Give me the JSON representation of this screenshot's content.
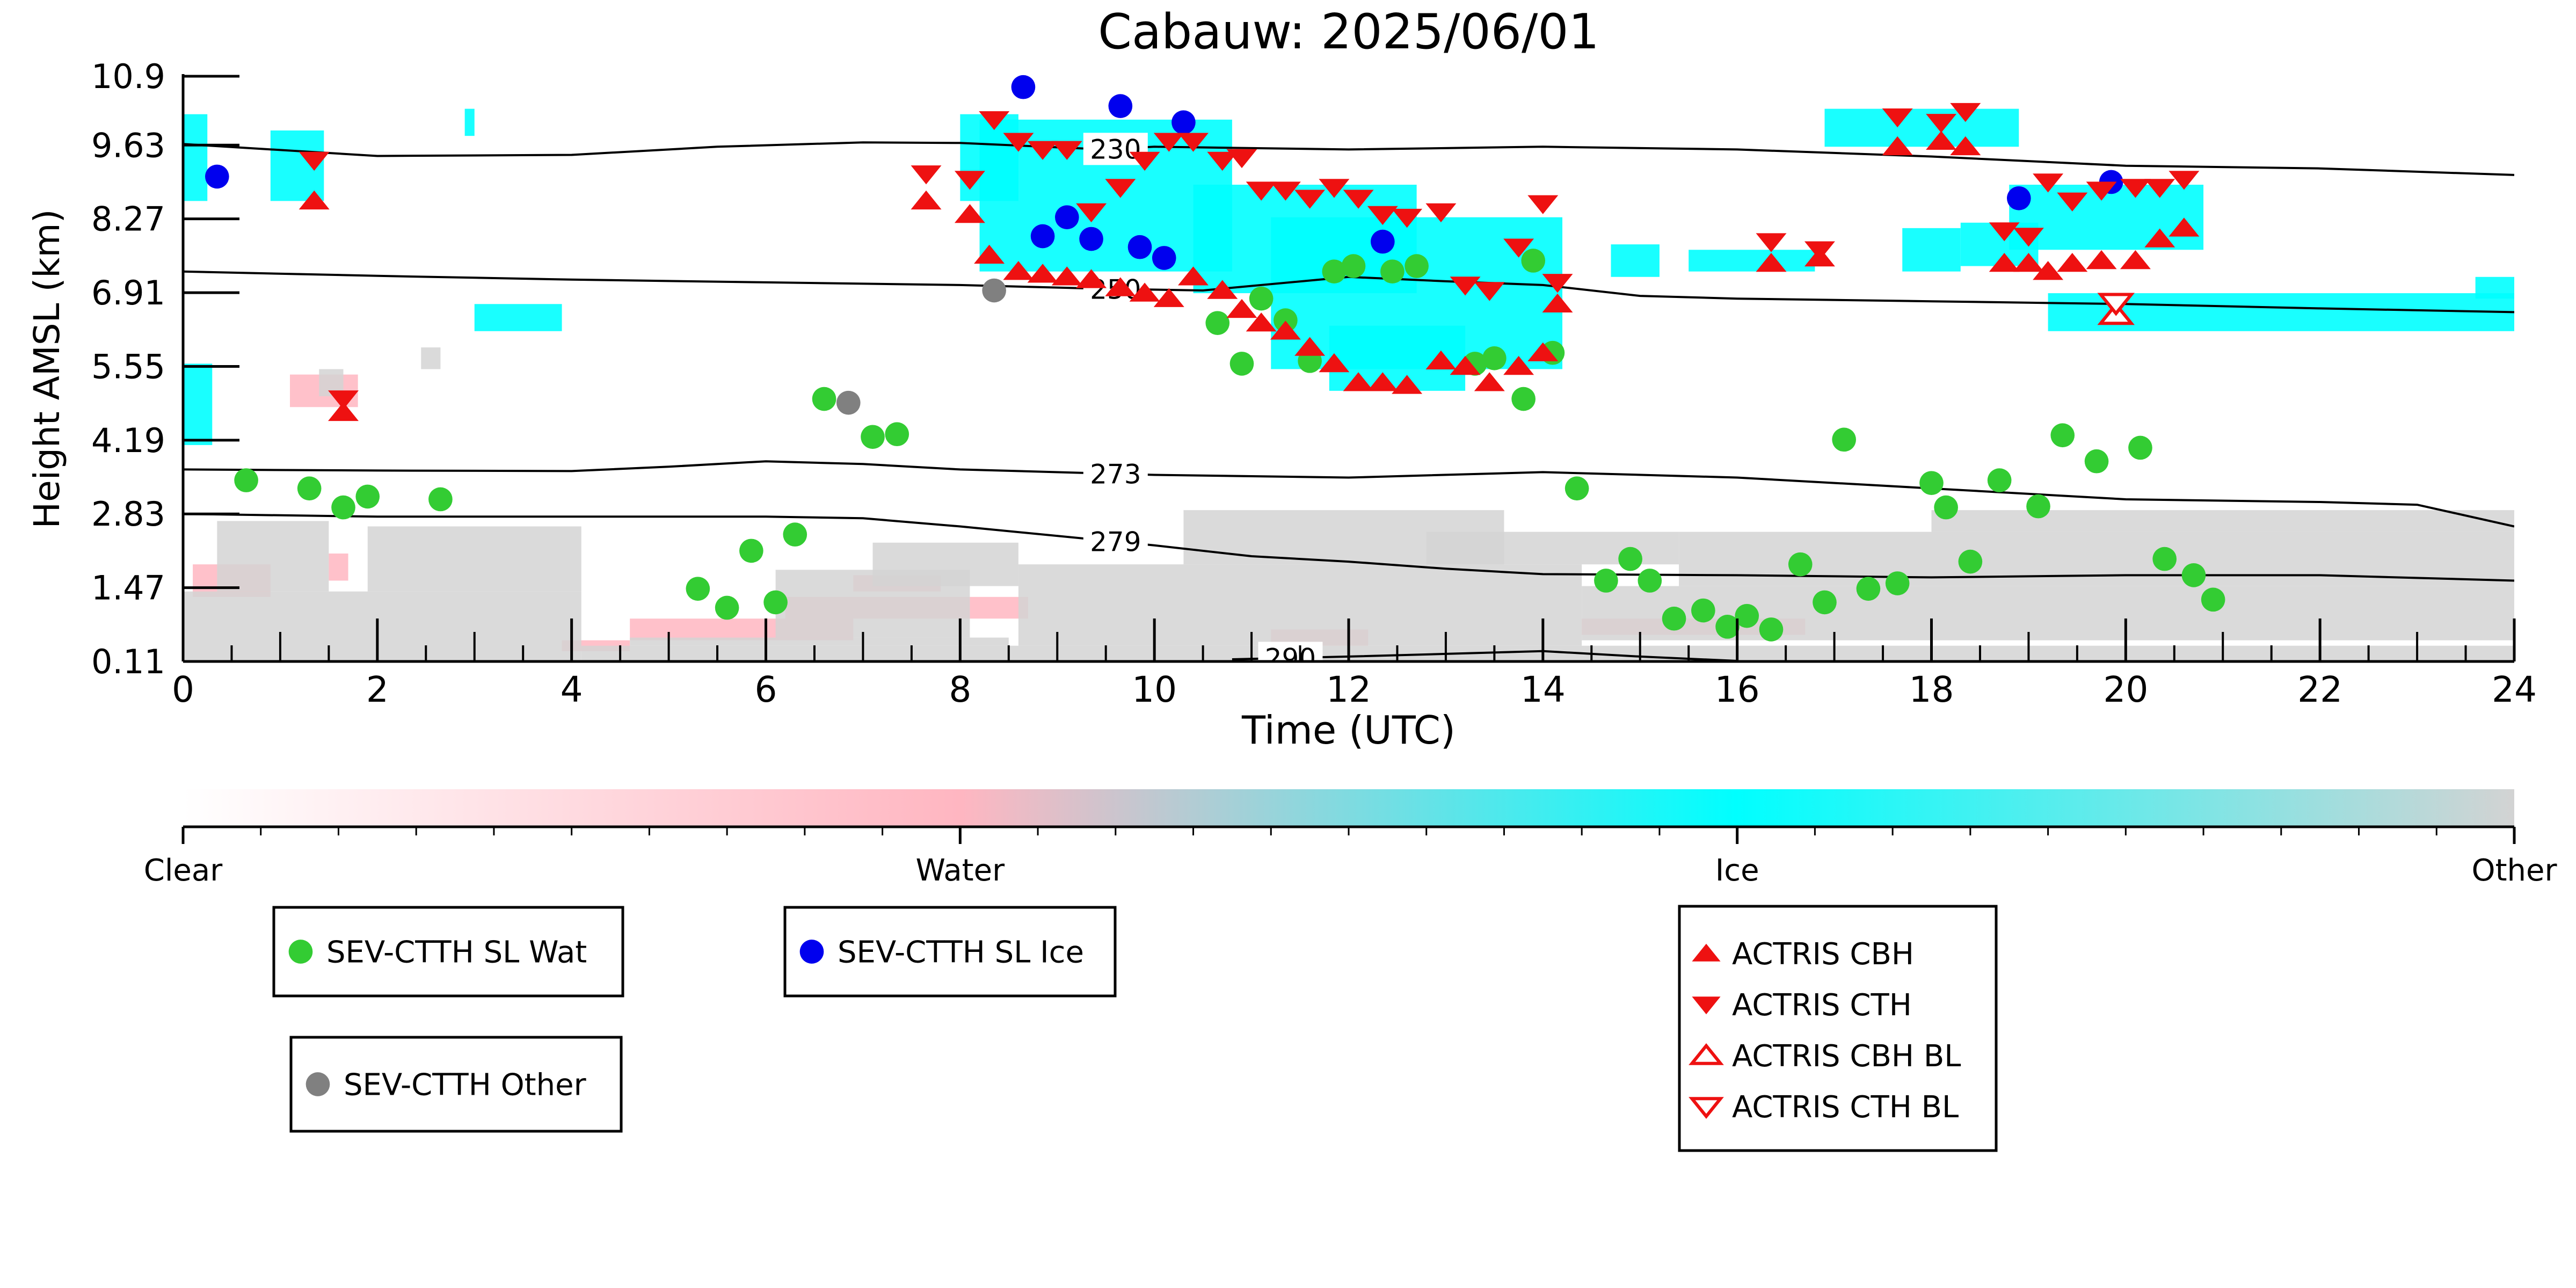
{
  "chart_data": {
    "type": "scatter",
    "title": "Cabauw: 2025/06/01",
    "xlabel": "Time (UTC)",
    "ylabel": "Height AMSL (km)",
    "xlim": [
      0,
      24
    ],
    "ylim": [
      0.11,
      10.9
    ],
    "x_ticks": [
      0,
      2,
      4,
      6,
      8,
      10,
      12,
      14,
      16,
      18,
      20,
      22,
      24
    ],
    "y_ticks": [
      0.11,
      1.47,
      2.83,
      4.19,
      5.55,
      6.91,
      8.27,
      9.63,
      10.9
    ],
    "y_tick_labels": [
      "0.11",
      "1.47",
      "2.83",
      "4.19",
      "5.55",
      "6.91",
      "8.27",
      "9.63",
      "10.9"
    ],
    "colorbar": {
      "labels": [
        "Clear",
        "Water",
        "Ice",
        "Other"
      ],
      "colors": [
        "#ffffff",
        "#ffb6c1",
        "#00ffff",
        "#d3d3d3"
      ]
    },
    "contours": [
      {
        "label": "230",
        "label_x": 9.6,
        "points": [
          [
            0,
            9.65
          ],
          [
            2,
            9.43
          ],
          [
            4,
            9.45
          ],
          [
            5.5,
            9.6
          ],
          [
            7,
            9.68
          ],
          [
            8,
            9.67
          ],
          [
            9.5,
            9.55
          ],
          [
            10,
            9.6
          ],
          [
            12,
            9.55
          ],
          [
            14,
            9.6
          ],
          [
            16,
            9.55
          ],
          [
            18,
            9.42
          ],
          [
            20,
            9.25
          ],
          [
            22,
            9.2
          ],
          [
            24,
            9.08
          ]
        ]
      },
      {
        "label": "250",
        "label_x": 9.6,
        "points": [
          [
            0,
            7.3
          ],
          [
            2,
            7.22
          ],
          [
            4,
            7.15
          ],
          [
            6,
            7.1
          ],
          [
            8,
            7.05
          ],
          [
            9.5,
            6.98
          ],
          [
            10.5,
            6.95
          ],
          [
            12,
            7.2
          ],
          [
            13,
            7.12
          ],
          [
            14,
            7.05
          ],
          [
            15,
            6.85
          ],
          [
            16,
            6.8
          ],
          [
            18,
            6.75
          ],
          [
            20,
            6.7
          ],
          [
            22,
            6.62
          ],
          [
            24,
            6.55
          ]
        ]
      },
      {
        "label": "273",
        "label_x": 9.6,
        "points": [
          [
            0,
            3.65
          ],
          [
            2,
            3.63
          ],
          [
            4,
            3.62
          ],
          [
            5,
            3.7
          ],
          [
            6,
            3.8
          ],
          [
            7,
            3.75
          ],
          [
            8,
            3.65
          ],
          [
            10,
            3.55
          ],
          [
            12,
            3.5
          ],
          [
            14,
            3.6
          ],
          [
            16,
            3.5
          ],
          [
            18,
            3.3
          ],
          [
            20,
            3.1
          ],
          [
            22,
            3.05
          ],
          [
            23,
            3.0
          ],
          [
            24,
            2.6
          ]
        ]
      },
      {
        "label": "279",
        "label_x": 9.6,
        "points": [
          [
            0,
            2.83
          ],
          [
            2,
            2.78
          ],
          [
            4,
            2.78
          ],
          [
            6,
            2.78
          ],
          [
            7,
            2.75
          ],
          [
            8,
            2.6
          ],
          [
            10,
            2.25
          ],
          [
            11,
            2.05
          ],
          [
            12,
            1.95
          ],
          [
            13,
            1.82
          ],
          [
            14,
            1.72
          ],
          [
            16,
            1.7
          ],
          [
            18,
            1.66
          ],
          [
            20,
            1.7
          ],
          [
            22,
            1.7
          ],
          [
            24,
            1.6
          ]
        ]
      },
      {
        "label": "290",
        "label_x": 11.4,
        "points": [
          [
            10.8,
            0.15
          ],
          [
            12,
            0.2
          ],
          [
            13,
            0.25
          ],
          [
            14,
            0.3
          ],
          [
            15,
            0.2
          ],
          [
            16,
            0.12
          ]
        ]
      }
    ],
    "series": [
      {
        "name": "SEV-CTTH SL Wat",
        "marker": "circle",
        "color": "#33cc33",
        "x": [
          0.65,
          1.3,
          1.65,
          1.9,
          2.65,
          5.3,
          5.6,
          5.85,
          6.1,
          6.3,
          6.6,
          7.1,
          7.35,
          10.65,
          10.9,
          11.1,
          11.35,
          11.6,
          11.85,
          12.05,
          12.45,
          12.7,
          13.3,
          13.5,
          13.8,
          13.9,
          14.1,
          14.35,
          14.65,
          14.9,
          15.1,
          15.35,
          15.65,
          15.9,
          16.1,
          16.35,
          16.65,
          16.9,
          17.1,
          17.35,
          17.65,
          18,
          18.15,
          18.4,
          18.7,
          19.1,
          19.35,
          19.7,
          20.15,
          20.4,
          20.7,
          20.9
        ],
        "y": [
          3.45,
          3.3,
          2.95,
          3.15,
          3.1,
          1.45,
          1.1,
          2.15,
          1.2,
          2.45,
          4.95,
          4.25,
          4.3,
          6.35,
          5.6,
          6.8,
          6.4,
          5.65,
          7.3,
          7.4,
          7.3,
          7.4,
          5.6,
          5.7,
          4.95,
          7.5,
          5.8,
          3.3,
          1.6,
          2.0,
          1.6,
          0.9,
          1.05,
          0.75,
          0.95,
          0.7,
          1.9,
          1.2,
          4.2,
          1.45,
          1.55,
          3.4,
          2.95,
          1.95,
          3.45,
          2.97,
          4.28,
          3.8,
          4.05,
          2.0,
          1.7,
          1.25
        ]
      },
      {
        "name": "SEV-CTTH SL Ice",
        "marker": "circle",
        "color": "#0000ee",
        "x": [
          0.35,
          8.65,
          8.85,
          9.1,
          9.35,
          9.65,
          9.85,
          10.1,
          10.3,
          12.35,
          18.9,
          19.85
        ],
        "y": [
          9.05,
          10.7,
          7.95,
          8.3,
          7.9,
          10.35,
          7.75,
          7.55,
          10.05,
          7.85,
          8.65,
          8.95
        ]
      },
      {
        "name": "SEV-CTTH Other",
        "marker": "circle",
        "color": "#808080",
        "x": [
          8.35,
          6.85
        ],
        "y": [
          6.95,
          4.88
        ]
      },
      {
        "name": "ACTRIS CBH",
        "marker": "triangle-up",
        "color": "#ee1111",
        "filled": true,
        "x": [
          1.35,
          1.65,
          7.65,
          8.1,
          8.3,
          8.6,
          8.85,
          9.1,
          9.35,
          9.65,
          9.9,
          10.15,
          10.4,
          10.7,
          10.9,
          11.1,
          11.35,
          11.6,
          11.85,
          12.1,
          12.35,
          12.6,
          12.95,
          13.2,
          13.45,
          13.75,
          14.0,
          14.15,
          16.35,
          16.85,
          17.65,
          18.1,
          18.35,
          18.75,
          19.0,
          19.2,
          19.45,
          19.75,
          20.1,
          20.35,
          20.6
        ],
        "y": [
          8.6,
          4.7,
          8.6,
          8.35,
          7.6,
          7.3,
          7.25,
          7.2,
          7.15,
          7.0,
          6.9,
          6.8,
          7.2,
          6.95,
          6.6,
          6.35,
          6.2,
          5.9,
          5.6,
          5.25,
          5.25,
          5.2,
          5.65,
          5.55,
          5.25,
          5.55,
          5.8,
          6.7,
          7.45,
          7.55,
          9.6,
          9.7,
          9.6,
          7.45,
          7.45,
          7.3,
          7.45,
          7.5,
          7.5,
          7.9,
          8.1
        ]
      },
      {
        "name": "ACTRIS CTH",
        "marker": "triangle-down",
        "color": "#ee1111",
        "filled": true,
        "x": [
          1.35,
          1.65,
          7.65,
          8.1,
          8.35,
          8.6,
          8.85,
          9.1,
          9.35,
          9.65,
          9.9,
          10.15,
          10.4,
          10.7,
          10.9,
          11.1,
          11.35,
          11.6,
          11.85,
          12.1,
          12.35,
          12.6,
          12.95,
          13.2,
          13.45,
          13.75,
          14.0,
          14.15,
          16.35,
          16.85,
          17.65,
          18.1,
          18.35,
          18.75,
          19.0,
          19.2,
          19.45,
          19.75,
          20.1,
          20.35,
          20.6
        ],
        "y": [
          9.35,
          4.95,
          9.1,
          9.0,
          10.1,
          9.7,
          9.55,
          9.55,
          8.4,
          8.85,
          9.35,
          9.7,
          9.7,
          9.35,
          9.4,
          8.8,
          8.8,
          8.65,
          8.85,
          8.65,
          8.35,
          8.3,
          8.4,
          7.05,
          6.95,
          7.75,
          8.55,
          7.1,
          7.85,
          7.7,
          10.15,
          10.05,
          10.25,
          8.05,
          7.95,
          8.95,
          8.6,
          8.8,
          8.85,
          8.85,
          9.0
        ]
      },
      {
        "name": "ACTRIS CBH BL",
        "marker": "triangle-up",
        "color": "#ee1111",
        "filled": false,
        "x": [
          19.9
        ],
        "y": [
          6.5
        ]
      },
      {
        "name": "ACTRIS CTH BL",
        "marker": "triangle-down",
        "color": "#ee1111",
        "filled": false,
        "x": [
          19.9
        ],
        "y": [
          6.72
        ]
      }
    ],
    "legend_groups": [
      [
        "SEV-CTTH SL Wat"
      ],
      [
        "SEV-CTTH SL Ice"
      ],
      [
        "SEV-CTTH Other"
      ],
      [
        "ACTRIS CBH",
        "ACTRIS CTH",
        "ACTRIS CBH BL",
        "ACTRIS CTH BL"
      ]
    ],
    "regions": [
      {
        "cls": "ice",
        "boxes": [
          [
            0,
            8.6,
            0.25,
            10.2
          ],
          [
            0,
            4.1,
            0.3,
            5.6
          ],
          [
            0.9,
            8.6,
            1.45,
            9.9
          ],
          [
            2.9,
            9.8,
            3.0,
            10.3
          ],
          [
            3.0,
            6.2,
            3.9,
            6.7
          ],
          [
            8.0,
            8.6,
            8.6,
            10.2
          ],
          [
            8.2,
            7.3,
            10.8,
            10.1
          ],
          [
            10.4,
            6.9,
            12.7,
            8.9
          ],
          [
            11.2,
            5.5,
            14.2,
            8.3
          ],
          [
            11.8,
            5.1,
            13.2,
            6.3
          ],
          [
            14.7,
            7.2,
            15.2,
            7.8
          ],
          [
            15.5,
            7.3,
            16.8,
            7.7
          ],
          [
            16.9,
            9.6,
            18.9,
            10.3
          ],
          [
            17.7,
            7.3,
            18.3,
            8.1
          ],
          [
            18.3,
            7.4,
            19.1,
            8.2
          ],
          [
            18.8,
            7.7,
            20.8,
            8.9
          ],
          [
            19.2,
            6.2,
            24.0,
            6.9
          ],
          [
            23.6,
            6.8,
            24.0,
            7.2
          ]
        ]
      },
      {
        "cls": "water",
        "boxes": [
          [
            0.1,
            1.3,
            0.9,
            1.9
          ],
          [
            1.5,
            1.6,
            1.7,
            2.1
          ],
          [
            1.1,
            4.8,
            1.8,
            5.4
          ],
          [
            3.9,
            0.3,
            4.6,
            0.5
          ],
          [
            4.6,
            0.5,
            6.9,
            0.9
          ],
          [
            6.2,
            0.9,
            8.7,
            1.3
          ],
          [
            6.9,
            1.4,
            7.8,
            1.7
          ],
          [
            11.2,
            0.4,
            12.2,
            0.7
          ],
          [
            14.4,
            0.6,
            16.7,
            0.9
          ]
        ]
      },
      {
        "cls": "other",
        "boxes": [
          [
            0,
            0.11,
            4.1,
            1.4
          ],
          [
            1.9,
            1.4,
            4.1,
            2.6
          ],
          [
            0.35,
            1.4,
            1.5,
            2.7
          ],
          [
            1.4,
            5.0,
            1.65,
            5.5
          ],
          [
            2.45,
            5.5,
            2.65,
            5.9
          ],
          [
            4.1,
            0.11,
            24.0,
            0.4
          ],
          [
            4.6,
            0.4,
            8.5,
            0.55
          ],
          [
            6.1,
            0.55,
            8.1,
            1.8
          ],
          [
            7.1,
            1.5,
            8.6,
            2.3
          ],
          [
            8.6,
            0.4,
            14.4,
            1.9
          ],
          [
            10.3,
            1.9,
            13.6,
            2.9
          ],
          [
            12.8,
            1.9,
            15.4,
            2.5
          ],
          [
            14.4,
            0.5,
            24.0,
            1.5
          ],
          [
            15.4,
            1.5,
            24.0,
            2.5
          ],
          [
            18.0,
            2.5,
            24.0,
            2.9
          ]
        ]
      }
    ]
  }
}
